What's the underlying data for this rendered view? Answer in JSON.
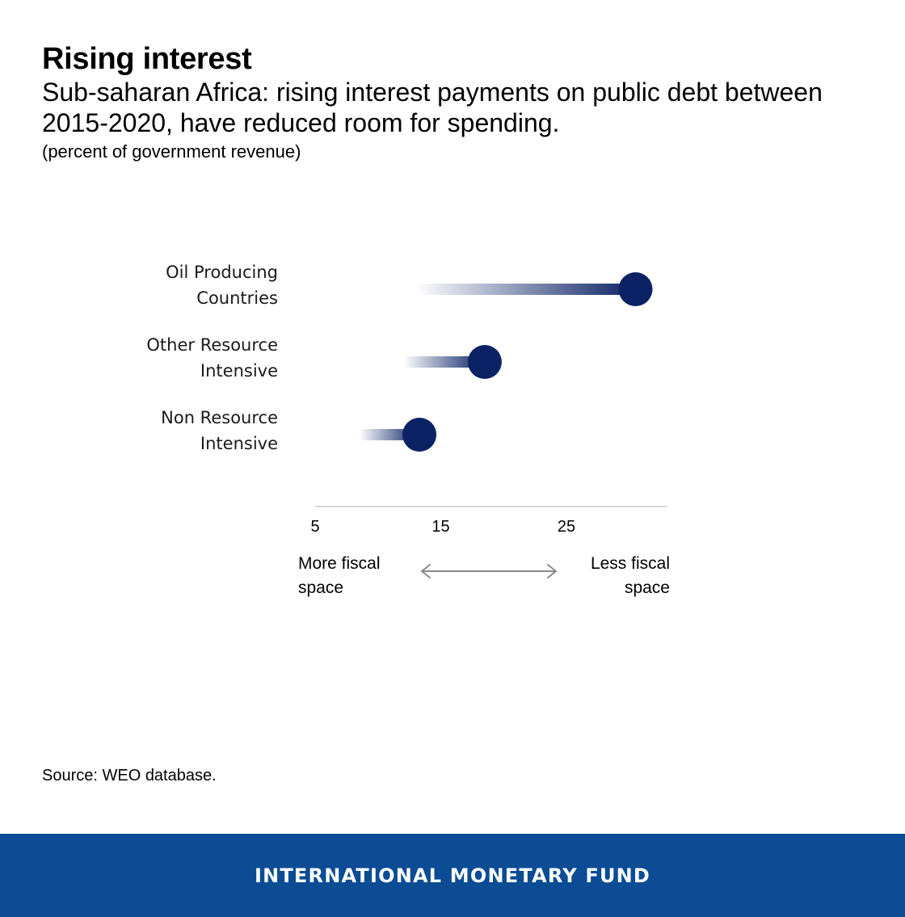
{
  "header": {
    "title": "Rising interest",
    "subtitle": "Sub-saharan Africa: rising interest payments on public debt between 2015-2020, have reduced room for spending.",
    "unit": "(percent of government revenue)"
  },
  "chart_data": {
    "type": "dumbbell",
    "title": "Rising interest",
    "subtitle": "Sub-saharan Africa: rising interest payments on public debt between 2015-2020, have reduced room for spending.",
    "unit": "(percent of government revenue)",
    "xlim": [
      5,
      33
    ],
    "x_ticks": [
      5,
      15,
      25
    ],
    "grid": false,
    "series": [
      {
        "label_lines": [
          "Oil Producing",
          "Countries"
        ],
        "start": 13,
        "end": 30.5
      },
      {
        "label_lines": [
          "Other Resource",
          "Intensive"
        ],
        "start": 12,
        "end": 18.5
      },
      {
        "label_lines": [
          "Non Resource",
          "Intensive"
        ],
        "start": 8.5,
        "end": 13.3
      }
    ],
    "annotations": {
      "left_lines": [
        "More fiscal",
        "space"
      ],
      "right_lines": [
        "Less fiscal",
        "space"
      ]
    },
    "colors": {
      "dot": "#0b2265",
      "axis": "#cccccc",
      "arrow": "#8a8a8a"
    }
  },
  "source": "Source: WEO database.",
  "footer": {
    "text": "INTERNATIONAL MONETARY FUND",
    "color": "#0b4c94"
  }
}
